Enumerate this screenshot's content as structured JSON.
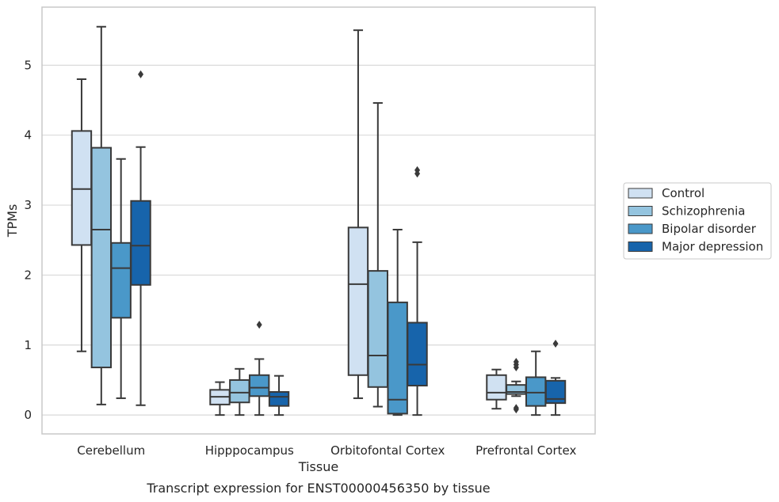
{
  "chart_data": {
    "type": "box",
    "xlabel": "Tissue",
    "ylabel": "TPMs",
    "caption": "Transcript expression for ENST00000456350 by tissue",
    "ylim": [
      -0.27,
      5.83
    ],
    "yticks": [
      0,
      1,
      2,
      3,
      4,
      5
    ],
    "grid": true,
    "legend_position": "right",
    "categories": [
      "Cerebellum",
      "Hipppocampus",
      "Orbitofontal Cortex",
      "Prefrontal Cortex"
    ],
    "series": [
      {
        "name": "Control",
        "color": "#d0e1f2",
        "boxes": [
          {
            "whislo": 0.91,
            "q1": 2.43,
            "med": 3.23,
            "q3": 4.06,
            "whishi": 4.8,
            "fliers": []
          },
          {
            "whislo": 0.0,
            "q1": 0.15,
            "med": 0.26,
            "q3": 0.36,
            "whishi": 0.47,
            "fliers": []
          },
          {
            "whislo": 0.24,
            "q1": 0.57,
            "med": 1.87,
            "q3": 2.68,
            "whishi": 5.5,
            "fliers": []
          },
          {
            "whislo": 0.09,
            "q1": 0.22,
            "med": 0.32,
            "q3": 0.57,
            "whishi": 0.65,
            "fliers": []
          }
        ]
      },
      {
        "name": "Schizophrenia",
        "color": "#94c4df",
        "boxes": [
          {
            "whislo": 0.15,
            "q1": 0.68,
            "med": 2.65,
            "q3": 3.82,
            "whishi": 5.55,
            "fliers": []
          },
          {
            "whislo": 0.0,
            "q1": 0.18,
            "med": 0.32,
            "q3": 0.5,
            "whishi": 0.66,
            "fliers": []
          },
          {
            "whislo": 0.12,
            "q1": 0.4,
            "med": 0.85,
            "q3": 2.06,
            "whishi": 4.46,
            "fliers": []
          },
          {
            "whislo": 0.27,
            "q1": 0.3,
            "med": 0.33,
            "q3": 0.43,
            "whishi": 0.48,
            "fliers": [
              0.68,
              0.72,
              0.76,
              0.1,
              0.08
            ]
          }
        ]
      },
      {
        "name": "Bipolar disorder",
        "color": "#4a98c9",
        "boxes": [
          {
            "whislo": 0.24,
            "q1": 1.39,
            "med": 2.1,
            "q3": 2.46,
            "whishi": 3.66,
            "fliers": []
          },
          {
            "whislo": 0.0,
            "q1": 0.27,
            "med": 0.39,
            "q3": 0.57,
            "whishi": 0.8,
            "fliers": [
              1.29
            ]
          },
          {
            "whislo": 0.0,
            "q1": 0.02,
            "med": 0.22,
            "q3": 1.61,
            "whishi": 2.65,
            "fliers": []
          },
          {
            "whislo": 0.0,
            "q1": 0.13,
            "med": 0.32,
            "q3": 0.54,
            "whishi": 0.91,
            "fliers": []
          }
        ]
      },
      {
        "name": "Major depression",
        "color": "#1764ab",
        "boxes": [
          {
            "whislo": 0.14,
            "q1": 1.86,
            "med": 2.42,
            "q3": 3.06,
            "whishi": 3.83,
            "fliers": [
              4.87
            ]
          },
          {
            "whislo": 0.0,
            "q1": 0.13,
            "med": 0.26,
            "q3": 0.33,
            "whishi": 0.56,
            "fliers": []
          },
          {
            "whislo": 0.0,
            "q1": 0.42,
            "med": 0.72,
            "q3": 1.32,
            "whishi": 2.47,
            "fliers": [
              3.5,
              3.45
            ]
          },
          {
            "whislo": 0.0,
            "q1": 0.17,
            "med": 0.23,
            "q3": 0.49,
            "whishi": 0.53,
            "fliers": [
              1.02
            ]
          }
        ]
      }
    ]
  }
}
